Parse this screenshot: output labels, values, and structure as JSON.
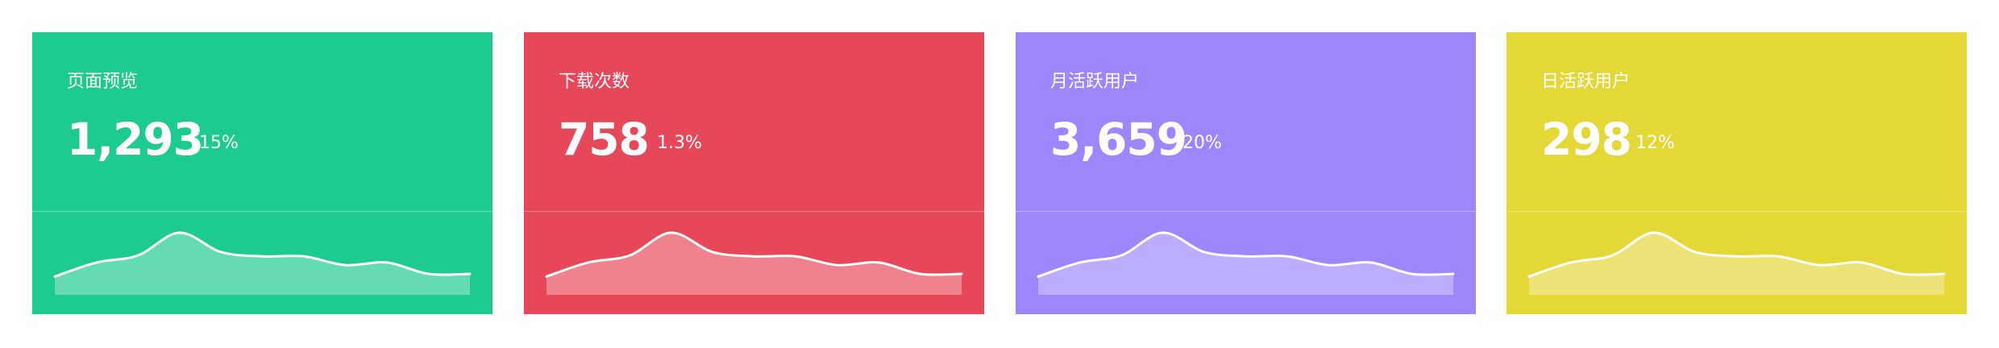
{
  "cards": [
    {
      "title": "页面预览",
      "value": "1,293",
      "percent": "15%",
      "color": "#1dcb8f",
      "trend": [
        20,
        36,
        44,
        70,
        48,
        43,
        43,
        33,
        36,
        23,
        23
      ]
    },
    {
      "title": "下载次数",
      "value": "758",
      "percent": "1.3%",
      "color": "#e64759",
      "trend": [
        20,
        36,
        44,
        70,
        48,
        43,
        43,
        33,
        36,
        23,
        23
      ]
    },
    {
      "title": "月活跃用户",
      "value": "3,659",
      "percent": "20%",
      "color": "#9e86ff",
      "trend": [
        20,
        36,
        44,
        70,
        48,
        43,
        43,
        33,
        36,
        23,
        23
      ]
    },
    {
      "title": "日活跃用户",
      "value": "298",
      "percent": "12%",
      "color": "#e4d836",
      "trend": [
        20,
        36,
        44,
        70,
        48,
        43,
        43,
        33,
        36,
        23,
        23
      ]
    }
  ]
}
